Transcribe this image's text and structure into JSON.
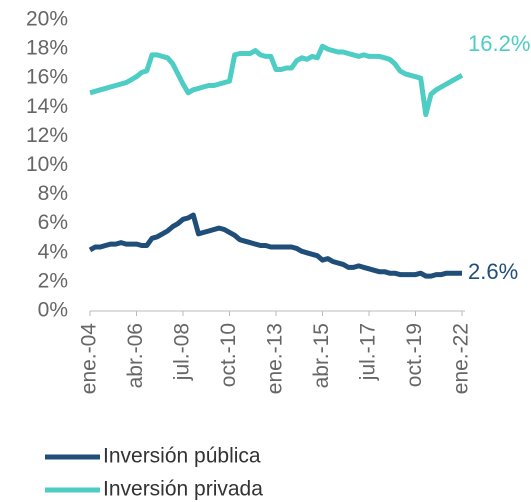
{
  "chart_data": {
    "type": "line",
    "categories": [
      "ene.-04",
      null,
      null,
      null,
      null,
      null,
      null,
      null,
      null,
      "abr.-06",
      null,
      null,
      null,
      null,
      null,
      null,
      null,
      null,
      "jul.-08",
      null,
      null,
      null,
      null,
      null,
      null,
      null,
      null,
      "oct.-10",
      null,
      null,
      null,
      null,
      null,
      null,
      null,
      null,
      "ene.-13",
      null,
      null,
      null,
      null,
      null,
      null,
      null,
      null,
      "abr.-15",
      null,
      null,
      null,
      null,
      null,
      null,
      null,
      null,
      "jul.-17",
      null,
      null,
      null,
      null,
      null,
      null,
      null,
      null,
      "oct.-19",
      null,
      null,
      null,
      null,
      null,
      null,
      null,
      null,
      "ene.-22"
    ],
    "series": [
      {
        "name": "Inversión pública",
        "color": "#1f4e79",
        "values": [
          4.2,
          4.4,
          4.4,
          4.5,
          4.6,
          4.6,
          4.7,
          4.6,
          4.6,
          4.6,
          4.5,
          4.5,
          5.0,
          5.1,
          5.3,
          5.5,
          5.8,
          6.0,
          6.3,
          6.4,
          6.6,
          5.3,
          5.4,
          5.5,
          5.6,
          5.7,
          5.6,
          5.4,
          5.2,
          4.9,
          4.8,
          4.7,
          4.6,
          4.5,
          4.5,
          4.4,
          4.4,
          4.4,
          4.4,
          4.4,
          4.3,
          4.1,
          4.0,
          3.9,
          3.8,
          3.5,
          3.6,
          3.4,
          3.3,
          3.2,
          3.0,
          3.0,
          3.1,
          3.0,
          2.9,
          2.8,
          2.7,
          2.7,
          2.6,
          2.6,
          2.5,
          2.5,
          2.5,
          2.5,
          2.6,
          2.4,
          2.4,
          2.5,
          2.5,
          2.6,
          2.6,
          2.6,
          2.6
        ],
        "value_labels": [
          null,
          null,
          null,
          null,
          null,
          null,
          null,
          null,
          null,
          null,
          null,
          null,
          null,
          null,
          null,
          null,
          null,
          null,
          null,
          null,
          null,
          null,
          null,
          null,
          null,
          null,
          null,
          null,
          null,
          null,
          null,
          null,
          null,
          null,
          null,
          null,
          null,
          null,
          null,
          null,
          null,
          null,
          null,
          null,
          null,
          null,
          null,
          null,
          null,
          null,
          null,
          null,
          null,
          null,
          null,
          null,
          null,
          null,
          null,
          null,
          null,
          null,
          null,
          null,
          null,
          null,
          null,
          null,
          null,
          null,
          null,
          null,
          "2.6%"
        ]
      },
      {
        "name": "Inversión privada",
        "color": "#4ecdc4",
        "values": [
          15.0,
          15.1,
          15.2,
          15.3,
          15.4,
          15.5,
          15.6,
          15.7,
          15.9,
          16.1,
          16.4,
          16.5,
          17.6,
          17.6,
          17.5,
          17.4,
          17.0,
          16.3,
          15.6,
          15.0,
          15.2,
          15.3,
          15.4,
          15.5,
          15.5,
          15.6,
          15.7,
          15.8,
          17.6,
          17.7,
          17.7,
          17.7,
          17.9,
          17.6,
          17.5,
          17.5,
          16.6,
          16.6,
          16.7,
          16.7,
          17.2,
          17.4,
          17.3,
          17.5,
          17.4,
          18.2,
          18.0,
          17.9,
          17.8,
          17.8,
          17.7,
          17.6,
          17.5,
          17.6,
          17.5,
          17.5,
          17.5,
          17.4,
          17.3,
          17.0,
          16.5,
          16.3,
          16.2,
          16.1,
          16.0,
          13.5,
          14.9,
          15.2,
          15.4,
          15.6,
          15.8,
          16.0,
          16.2
        ],
        "value_labels": [
          null,
          null,
          null,
          null,
          null,
          null,
          null,
          null,
          null,
          null,
          null,
          null,
          null,
          null,
          null,
          null,
          null,
          null,
          null,
          null,
          null,
          null,
          null,
          null,
          null,
          null,
          null,
          null,
          null,
          null,
          null,
          null,
          null,
          null,
          null,
          null,
          null,
          null,
          null,
          null,
          null,
          null,
          null,
          null,
          null,
          null,
          null,
          null,
          null,
          null,
          null,
          null,
          null,
          null,
          null,
          null,
          null,
          null,
          null,
          null,
          null,
          null,
          null,
          null,
          null,
          null,
          null,
          null,
          null,
          null,
          null,
          null,
          "16.2%"
        ]
      }
    ],
    "ylim": [
      0,
      20
    ],
    "yticks": [
      {
        "value": 0,
        "label": "0%"
      },
      {
        "value": 2,
        "label": "2%"
      },
      {
        "value": 4,
        "label": "4%"
      },
      {
        "value": 6,
        "label": "6%"
      },
      {
        "value": 8,
        "label": "8%"
      },
      {
        "value": 10,
        "label": "10%"
      },
      {
        "value": 12,
        "label": "12%"
      },
      {
        "value": 14,
        "label": "14%"
      },
      {
        "value": 16,
        "label": "16%"
      },
      {
        "value": 18,
        "label": "18%"
      },
      {
        "value": 20,
        "label": "20%"
      }
    ],
    "grid": false
  }
}
